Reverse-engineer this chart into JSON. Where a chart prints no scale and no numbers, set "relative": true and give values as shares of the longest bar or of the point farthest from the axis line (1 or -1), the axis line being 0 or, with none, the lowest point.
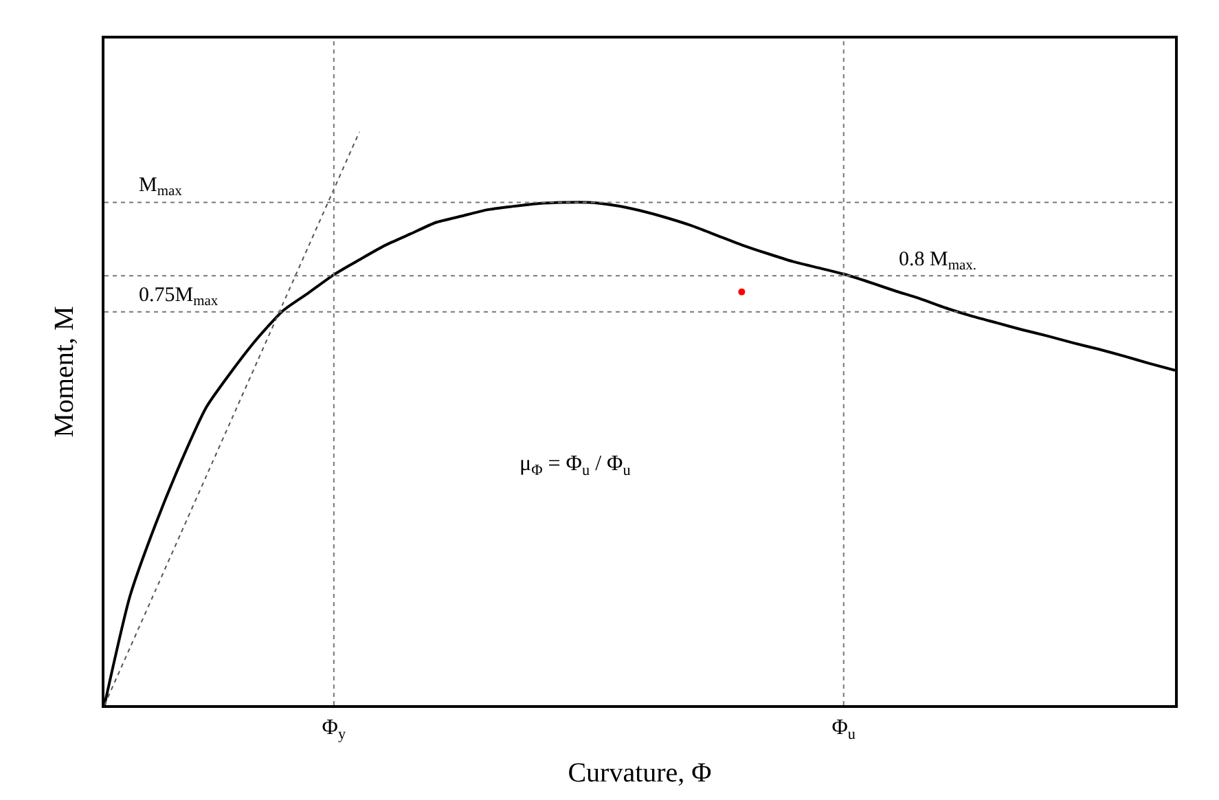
{
  "chart_data": {
    "type": "line",
    "relative": true,
    "xlabel": "Curvature, Φ",
    "ylabel": "Moment, M",
    "categories": [
      null,
      null,
      null,
      null,
      null,
      null,
      null,
      null,
      null,
      "Φ$_{y}$",
      null,
      null,
      null,
      null,
      null,
      null,
      null,
      null,
      null,
      null,
      null,
      null,
      null,
      null,
      null,
      null,
      null,
      null,
      null,
      "Φ$_{u}$",
      null,
      null,
      null,
      null,
      null,
      null,
      null,
      null,
      null,
      null,
      null,
      null,
      null
    ],
    "tick_labels": "x",
    "marker": "none",
    "series": [
      {
        "color": "#000000",
        "line_style": "solid",
        "values": [
          0,
          0.19,
          0.315,
          0.424,
          0.52,
          0.583,
          0.64,
          0.688,
          0.719,
          0.751,
          0.777,
          0.802,
          0.822,
          0.842,
          0.853,
          0.864,
          0.87,
          0.875,
          0.877,
          0.877,
          0.872,
          0.863,
          0.851,
          0.837,
          0.82,
          0.803,
          0.788,
          0.774,
          0.763,
          0.752,
          0.738,
          0.723,
          0.709,
          0.693,
          0.679,
          0.667,
          0.655,
          0.644,
          0.632,
          0.621,
          0.609,
          0.596,
          0.584
        ]
      },
      {
        "color": "#555555",
        "line_style": "dotted",
        "values": [
          0,
          0.1,
          0.2,
          0.3,
          0.4,
          0.5,
          0.6,
          0.7,
          0.8,
          0.9,
          1.0,
          null,
          null,
          null,
          null,
          null,
          null,
          null,
          null,
          null,
          null,
          null,
          null,
          null,
          null,
          null,
          null,
          null,
          null,
          null,
          null,
          null,
          null,
          null,
          null,
          null,
          null,
          null,
          null,
          null,
          null,
          null,
          null
        ]
      },
      {
        "type": "scatter",
        "marker": "circle",
        "color": "#ff0000",
        "values": [
          null,
          null,
          null,
          null,
          null,
          null,
          null,
          null,
          null,
          null,
          null,
          null,
          null,
          null,
          null,
          null,
          null,
          null,
          null,
          null,
          null,
          null,
          null,
          null,
          null,
          0.721,
          null,
          null,
          null,
          null,
          null,
          null,
          null,
          null,
          null,
          null,
          null,
          null,
          null,
          null,
          null,
          null,
          null
        ]
      }
    ],
    "ref_lines": [
      {
        "axis": "y",
        "value": 0.877,
        "label": "M$_{max}$",
        "color": "#777777",
        "line_style": "dotted"
      },
      {
        "axis": "y",
        "value": 0.686,
        "label": "0.75M$_{max}$",
        "color": "#777777",
        "line_style": "dotted"
      },
      {
        "axis": "y",
        "value": 0.749,
        "label": "0.8 M$_{max.}$",
        "color": "#777777",
        "line_style": "dotted"
      },
      {
        "axis": "x",
        "value": "Φ$_{y}$",
        "color": "#777777",
        "line_style": "dotted"
      },
      {
        "axis": "x",
        "value": "Φ$_{u}$",
        "color": "#777777",
        "line_style": "dotted"
      }
    ],
    "annotations": [
      "μ$_{Φ}$ = Φ$_{u}$ / Φ$_{u}$"
    ]
  }
}
